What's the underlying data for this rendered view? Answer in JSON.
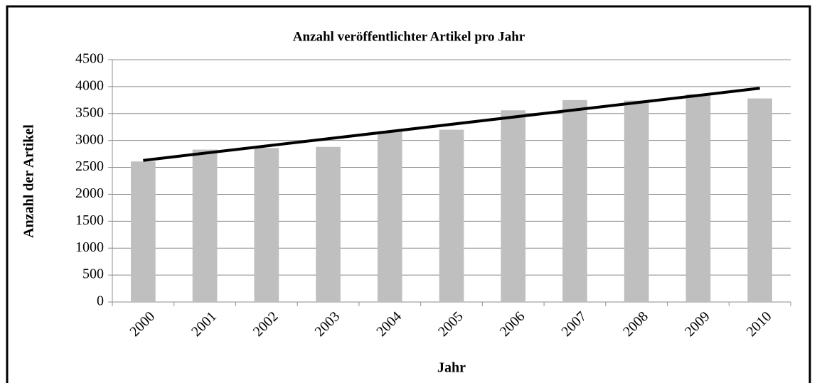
{
  "chart_data": {
    "type": "bar",
    "title": "Anzahl veröffentlichter Artikel pro Jahr",
    "xlabel": "Jahr",
    "ylabel": "Anzahl der Artikel",
    "categories": [
      "2000",
      "2001",
      "2002",
      "2003",
      "2004",
      "2005",
      "2006",
      "2007",
      "2008",
      "2009",
      "2010"
    ],
    "values": [
      2610,
      2830,
      2860,
      2880,
      3170,
      3200,
      3560,
      3750,
      3740,
      3860,
      3780
    ],
    "color": "#bfbfbf",
    "trendline": {
      "color": "#000000",
      "values": [
        2630,
        3970
      ]
    },
    "ylim": [
      0,
      4500
    ],
    "yticks": [
      0,
      500,
      1000,
      1500,
      2000,
      2500,
      3000,
      3500,
      4000,
      4500
    ],
    "grid": true
  }
}
